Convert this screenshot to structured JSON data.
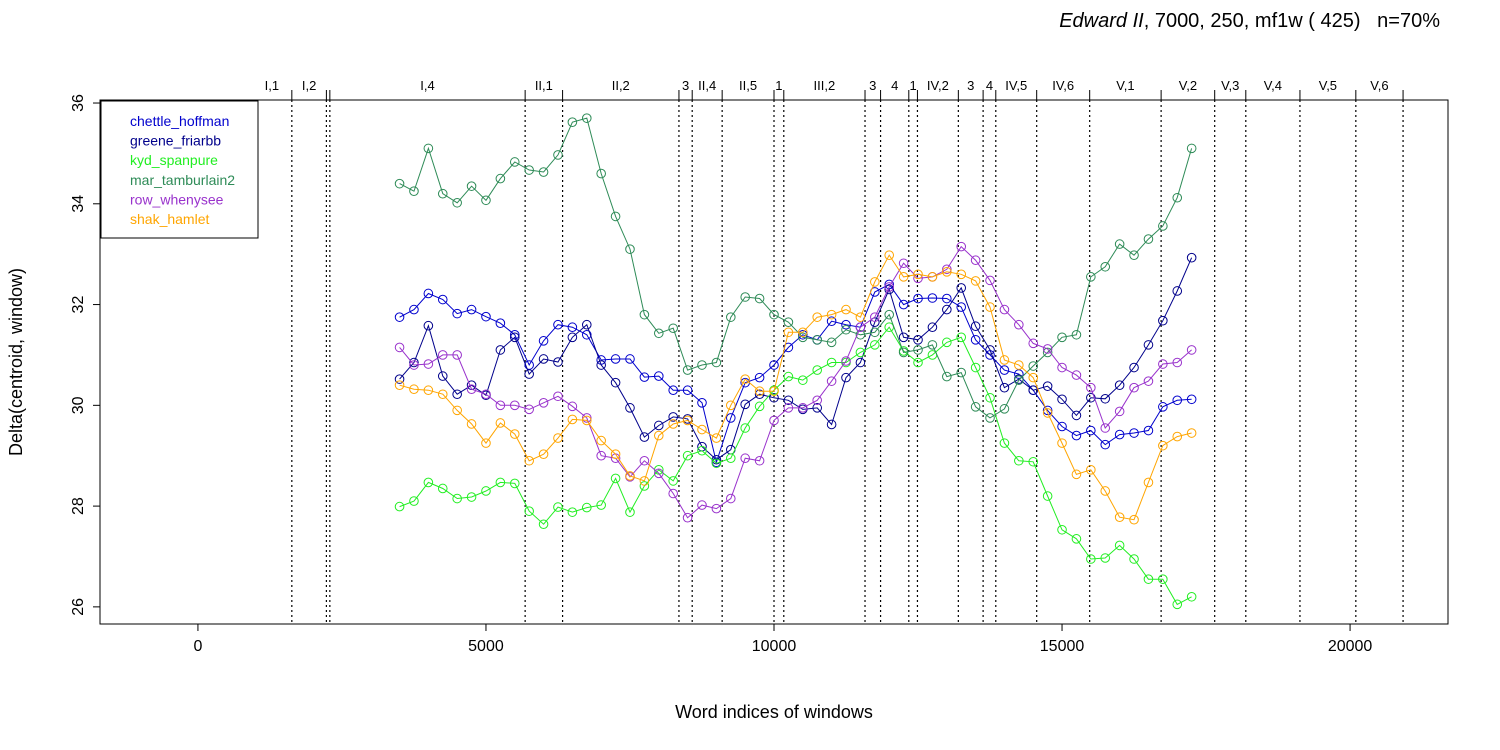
{
  "chart_data": {
    "type": "line",
    "title": {
      "italic": "Edward II",
      "rest": ", 7000, 250, mf1w ( 425)   n=70%"
    },
    "xlabel": "Word indices of windows",
    "ylabel": "Delta(centroid, window)",
    "xlim": [
      -1700,
      21700
    ],
    "ylim": [
      25.66,
      36.06
    ],
    "x_ticks": [
      0,
      5000,
      10000,
      15000,
      20000
    ],
    "y_ticks": [
      26,
      28,
      30,
      32,
      34,
      36
    ],
    "grid": false,
    "legend_position": "top-left",
    "scenes": [
      {
        "label": "I,1",
        "x": 1630
      },
      {
        "label": "I,2",
        "x": 2230
      },
      {
        "label": "",
        "x": 2290
      },
      {
        "label": "I,4",
        "x": 5680
      },
      {
        "label": "II,1",
        "x": 6330
      },
      {
        "label": "II,2",
        "x": 8350
      },
      {
        "label": "3",
        "x": 8580
      },
      {
        "label": "II,4",
        "x": 9100
      },
      {
        "label": "II,5",
        "x": 10000
      },
      {
        "label": "1",
        "x": 10170
      },
      {
        "label": "III,2",
        "x": 11580
      },
      {
        "label": "3",
        "x": 11850
      },
      {
        "label": "4",
        "x": 12340
      },
      {
        "label": "1",
        "x": 12490
      },
      {
        "label": "IV,2",
        "x": 13200
      },
      {
        "label": "3",
        "x": 13630
      },
      {
        "label": "4",
        "x": 13850
      },
      {
        "label": "IV,5",
        "x": 14560
      },
      {
        "label": "IV,6",
        "x": 15480
      },
      {
        "label": "V,1",
        "x": 16720
      },
      {
        "label": "V,2",
        "x": 17650
      },
      {
        "label": "V,3",
        "x": 18190
      },
      {
        "label": "V,4",
        "x": 19130
      },
      {
        "label": "V,5",
        "x": 20100
      },
      {
        "label": "V,6",
        "x": 20920
      }
    ],
    "x": [
      3500,
      3750,
      4000,
      4250,
      4500,
      4750,
      5000,
      5250,
      5500,
      5750,
      6000,
      6250,
      6500,
      6750,
      7000,
      7250,
      7500,
      7750,
      8000,
      8250,
      8500,
      8750,
      9000,
      9250,
      9500,
      9750,
      10000,
      10250,
      10500,
      10750,
      11000,
      11250,
      11500,
      11750,
      12000,
      12250,
      12500,
      12750,
      13000,
      13250,
      13500,
      13750,
      14000,
      14250,
      14500,
      14750,
      15000,
      15250,
      15500,
      15750,
      16000,
      16250,
      16500,
      16750,
      17000,
      17250
    ],
    "series": [
      {
        "name": "chettle_hoffman",
        "color": "#0000CD",
        "values": [
          31.75,
          31.9,
          32.22,
          32.1,
          31.82,
          31.9,
          31.76,
          31.63,
          31.4,
          30.8,
          31.28,
          31.6,
          31.55,
          31.4,
          30.9,
          30.92,
          30.92,
          30.56,
          30.58,
          30.3,
          30.3,
          30.05,
          28.87,
          29.75,
          30.45,
          30.55,
          30.8,
          31.15,
          31.4,
          31.3,
          31.67,
          31.6,
          31.55,
          32.25,
          32.4,
          32.0,
          32.12,
          32.13,
          32.12,
          31.95,
          31.3,
          31.0,
          30.7,
          30.62,
          30.3,
          29.9,
          29.58,
          29.4,
          29.5,
          29.22,
          29.42,
          29.45,
          29.5,
          29.97,
          30.1,
          30.12
        ]
      },
      {
        "name": "greene_friarbb",
        "color": "#00008B",
        "values": [
          30.52,
          30.85,
          31.58,
          30.58,
          30.22,
          30.4,
          30.2,
          31.1,
          31.35,
          30.62,
          30.92,
          30.86,
          31.35,
          31.6,
          30.8,
          30.45,
          29.95,
          29.37,
          29.6,
          29.77,
          29.73,
          29.18,
          28.92,
          29.12,
          30.02,
          30.22,
          30.15,
          30.1,
          29.92,
          29.95,
          29.62,
          30.55,
          30.85,
          31.65,
          32.3,
          31.35,
          31.3,
          31.55,
          31.9,
          32.33,
          31.57,
          31.1,
          30.35,
          30.52,
          30.3,
          30.38,
          30.12,
          29.8,
          30.15,
          30.13,
          30.4,
          30.75,
          31.2,
          31.68,
          32.27,
          32.93
        ]
      },
      {
        "name": "kyd_spanpure",
        "color": "#22EE22",
        "values": [
          27.99,
          28.1,
          28.47,
          28.35,
          28.15,
          28.18,
          28.3,
          28.47,
          28.45,
          27.9,
          27.64,
          27.98,
          27.88,
          27.97,
          28.02,
          28.55,
          27.88,
          28.4,
          28.72,
          28.5,
          29.0,
          29.1,
          28.85,
          28.95,
          29.55,
          29.98,
          30.3,
          30.57,
          30.5,
          30.7,
          30.85,
          30.85,
          31.05,
          31.2,
          31.55,
          31.08,
          30.85,
          31.0,
          31.25,
          31.35,
          30.75,
          30.15,
          29.25,
          28.9,
          28.88,
          28.2,
          27.53,
          27.35,
          26.95,
          26.97,
          27.22,
          26.95,
          26.55,
          26.55,
          26.05,
          26.2
        ]
      },
      {
        "name": "mar_tamburlain2",
        "color": "#2E8B57",
        "values": [
          34.4,
          34.25,
          35.1,
          34.2,
          34.02,
          34.35,
          34.07,
          34.5,
          34.83,
          34.67,
          34.63,
          34.97,
          35.62,
          35.7,
          34.6,
          33.75,
          33.1,
          31.8,
          31.43,
          31.53,
          30.7,
          30.8,
          30.85,
          31.75,
          32.15,
          32.12,
          31.8,
          31.65,
          31.35,
          31.3,
          31.25,
          31.5,
          31.4,
          31.45,
          31.8,
          31.05,
          31.1,
          31.2,
          30.57,
          30.65,
          29.97,
          29.75,
          29.93,
          30.5,
          30.78,
          31.05,
          31.35,
          31.4,
          32.55,
          32.75,
          33.2,
          32.98,
          33.3,
          33.56,
          34.12,
          35.1
        ]
      },
      {
        "name": "row_whenysee",
        "color": "#9932CC",
        "values": [
          31.15,
          30.8,
          30.82,
          31.0,
          31.0,
          30.32,
          30.22,
          30.0,
          30.0,
          29.92,
          30.05,
          30.18,
          29.98,
          29.75,
          29.0,
          28.95,
          28.58,
          28.9,
          28.65,
          28.25,
          27.77,
          28.02,
          27.95,
          28.15,
          28.95,
          28.9,
          29.7,
          29.95,
          29.95,
          30.1,
          30.48,
          30.88,
          31.55,
          31.75,
          32.35,
          32.82,
          32.52,
          32.55,
          32.7,
          33.15,
          32.88,
          32.48,
          31.9,
          31.6,
          31.23,
          31.12,
          30.75,
          30.6,
          30.35,
          29.55,
          29.88,
          30.35,
          30.48,
          30.82,
          30.85,
          31.1
        ]
      },
      {
        "name": "shak_hamlet",
        "color": "#FFA500",
        "values": [
          30.4,
          30.32,
          30.3,
          30.22,
          29.9,
          29.63,
          29.25,
          29.65,
          29.43,
          28.9,
          29.03,
          29.35,
          29.72,
          29.7,
          29.3,
          29.03,
          28.6,
          28.5,
          29.4,
          29.63,
          29.7,
          29.52,
          29.35,
          30.0,
          30.52,
          30.28,
          30.28,
          31.45,
          31.45,
          31.75,
          31.8,
          31.9,
          31.75,
          32.45,
          32.98,
          32.55,
          32.6,
          32.55,
          32.65,
          32.6,
          32.47,
          31.95,
          30.9,
          30.8,
          30.55,
          29.85,
          29.25,
          28.63,
          28.72,
          28.3,
          27.78,
          27.73,
          28.47,
          29.2,
          29.38,
          29.45
        ]
      }
    ]
  }
}
